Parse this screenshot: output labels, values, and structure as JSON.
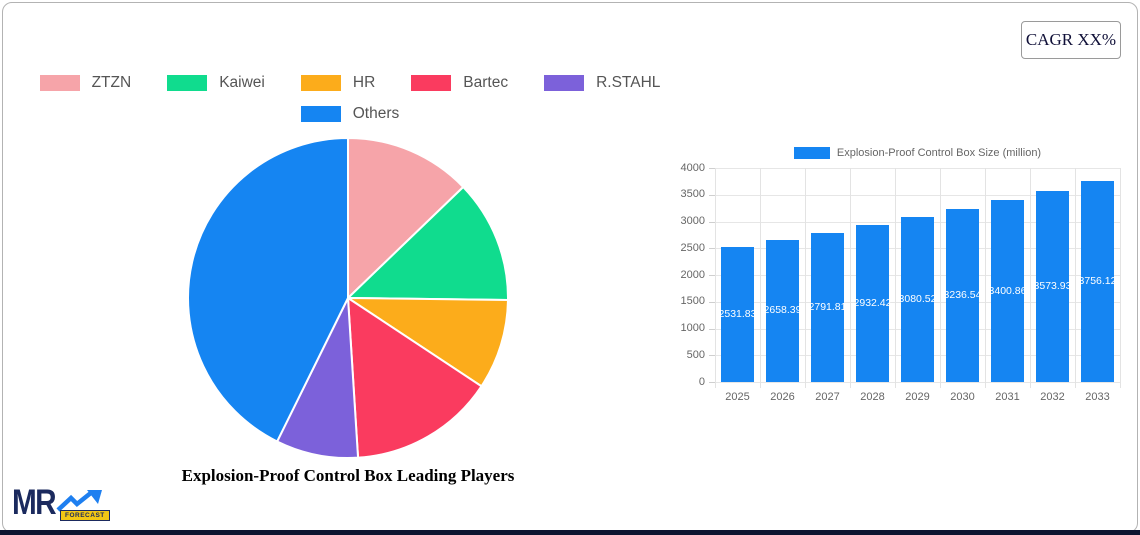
{
  "header": {
    "cagr_label": "CAGR XX%"
  },
  "logo": {
    "name": "MR",
    "badge": "FORECAST"
  },
  "colors": {
    "accent_blue": "#1585f2",
    "navy": "#1b2a5e",
    "yellow": "#f2c714",
    "grid": "#e6e6e6",
    "axis_text": "#666666",
    "legend_text": "#555555"
  },
  "chart_data": [
    {
      "type": "pie",
      "title": "Explosion-Proof Control Box Leading Players",
      "labels": [
        "ZTZN",
        "Kaiwei",
        "HR",
        "Bartec",
        "R.STAHL",
        "Others"
      ],
      "values": [
        12.8,
        12.4,
        9.1,
        14.7,
        8.3,
        42.7
      ],
      "colors": [
        "#f6a4a9",
        "#10dc8e",
        "#fcac1b",
        "#fa3b5f",
        "#7c61da",
        "#1585f2"
      ],
      "legend_position": "top",
      "legend_rows": [
        [
          0,
          1,
          2,
          3,
          4
        ],
        [
          5
        ]
      ],
      "start_angle_deg": 0,
      "direction": "clockwise"
    },
    {
      "type": "bar",
      "title": "Explosion-Proof Control Box Size (million)",
      "categories": [
        "2025",
        "2026",
        "2027",
        "2028",
        "2029",
        "2030",
        "2031",
        "2032",
        "2033"
      ],
      "values": [
        2531.83,
        2658.39,
        2791.81,
        2932.42,
        3080.52,
        3236.54,
        3400.86,
        3573.93,
        3756.12
      ],
      "bar_color": "#1585f2",
      "ylim": [
        0,
        4000
      ],
      "yticks": [
        0,
        500,
        1000,
        1500,
        2000,
        2500,
        3000,
        3500,
        4000
      ],
      "grid": true,
      "legend_position": "top"
    }
  ]
}
